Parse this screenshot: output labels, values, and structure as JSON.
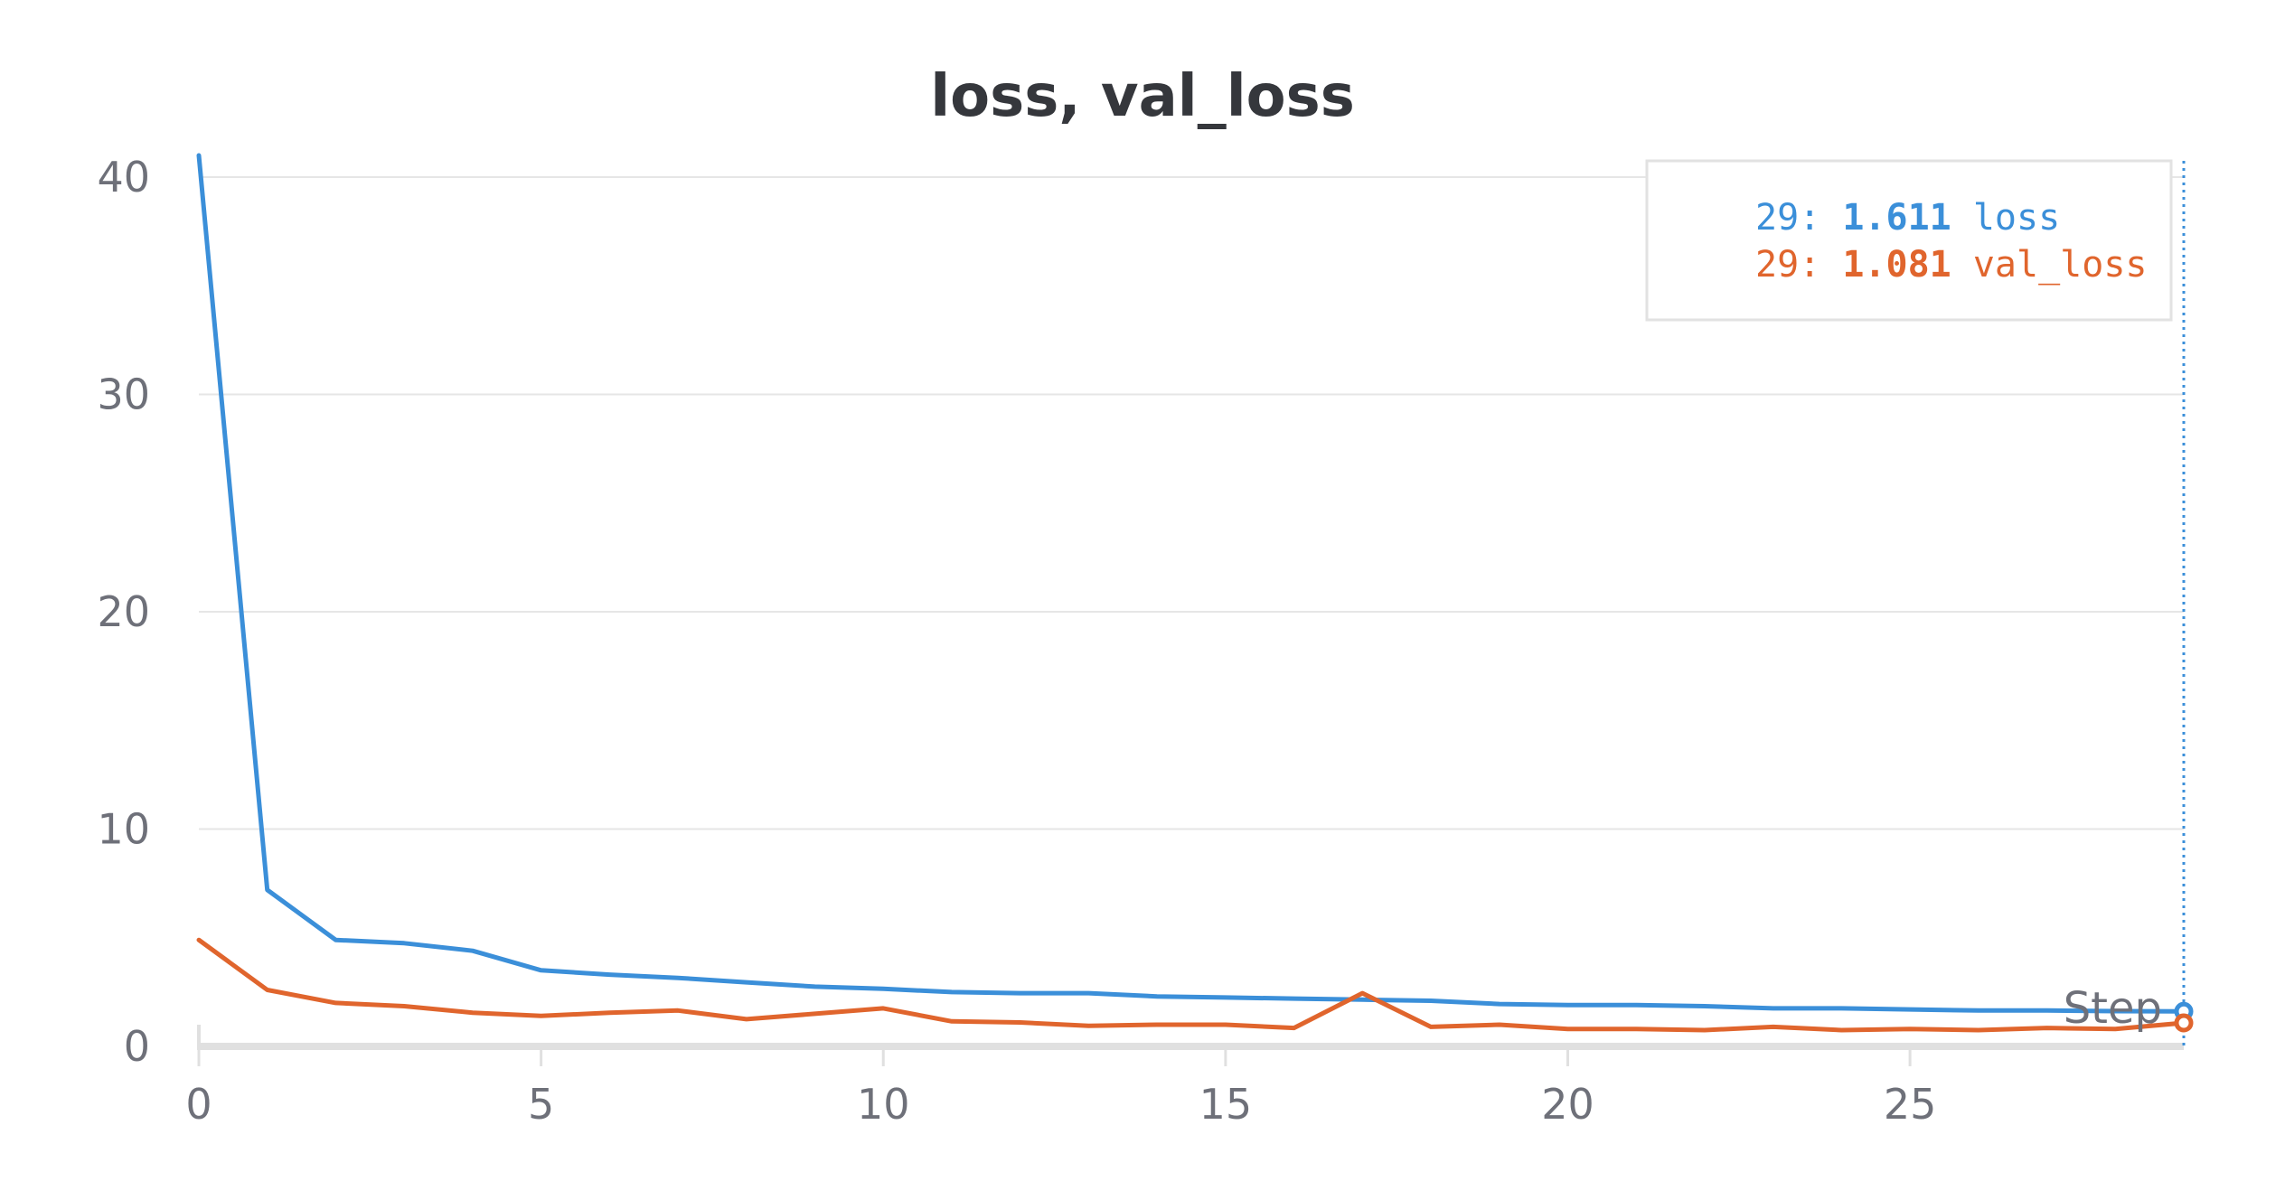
{
  "chart_data": {
    "type": "line",
    "title": "loss, val_loss",
    "xlabel": "Step",
    "ylabel": "",
    "xlim": [
      0,
      29
    ],
    "ylim": [
      0,
      40
    ],
    "x_ticks": [
      0,
      5,
      10,
      15,
      20,
      25
    ],
    "y_ticks": [
      0,
      10,
      20,
      30,
      40
    ],
    "grid": true,
    "x": [
      0,
      1,
      2,
      3,
      4,
      5,
      6,
      7,
      8,
      9,
      10,
      11,
      12,
      13,
      14,
      15,
      16,
      17,
      18,
      19,
      20,
      21,
      22,
      23,
      24,
      25,
      26,
      27,
      28,
      29
    ],
    "series": [
      {
        "name": "loss",
        "color": "#3b8fd9",
        "values": [
          41.0,
          7.2,
          4.9,
          4.75,
          4.4,
          3.5,
          3.3,
          3.15,
          2.95,
          2.75,
          2.65,
          2.5,
          2.45,
          2.45,
          2.3,
          2.25,
          2.2,
          2.15,
          2.1,
          1.95,
          1.9,
          1.9,
          1.85,
          1.75,
          1.75,
          1.7,
          1.65,
          1.65,
          1.62,
          1.611
        ]
      },
      {
        "name": "val_loss",
        "color": "#e0652d",
        "values": [
          4.9,
          2.6,
          2.0,
          1.85,
          1.55,
          1.4,
          1.55,
          1.65,
          1.25,
          1.5,
          1.75,
          1.15,
          1.1,
          0.95,
          1.0,
          1.0,
          0.85,
          2.45,
          0.9,
          1.0,
          0.8,
          0.8,
          0.75,
          0.9,
          0.75,
          0.8,
          0.75,
          0.85,
          0.8,
          1.081
        ]
      }
    ],
    "hover": {
      "step": 29,
      "entries": [
        {
          "prefix": "29: ",
          "value": "1.611",
          "label": "loss",
          "color": "#3b8fd9"
        },
        {
          "prefix": "29: ",
          "value": "1.081",
          "label": "val_loss",
          "color": "#e0652d"
        }
      ]
    },
    "legend_position": "top-right"
  }
}
